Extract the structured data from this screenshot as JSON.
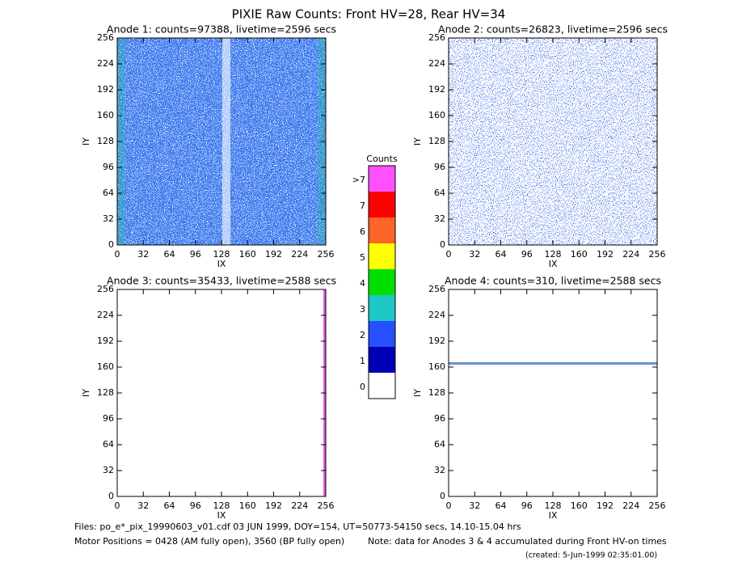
{
  "chart_data": {
    "type": "heatmap",
    "title": "PIXIE Raw Counts:  Front HV=28, Rear HV=34",
    "panels": [
      {
        "title": "Anode 1: counts=97388, livetime=2596 secs",
        "xlabel": "IX",
        "ylabel": "IY",
        "xlim": [
          0,
          256
        ],
        "ylim": [
          0,
          256
        ],
        "xticks": [
          0,
          32,
          64,
          96,
          128,
          160,
          192,
          224,
          256
        ],
        "yticks": [
          0,
          32,
          64,
          96,
          128,
          160,
          192,
          224,
          256
        ]
      },
      {
        "title": "Anode 2: counts=26823, livetime=2596 secs",
        "xlabel": "IX",
        "ylabel": "IY",
        "xlim": [
          0,
          256
        ],
        "ylim": [
          0,
          256
        ],
        "xticks": [
          0,
          32,
          64,
          96,
          128,
          160,
          192,
          224,
          256
        ],
        "yticks": [
          0,
          32,
          64,
          96,
          128,
          160,
          192,
          224,
          256
        ]
      },
      {
        "title": "Anode 3: counts=35433, livetime=2588 secs",
        "xlabel": "IX",
        "ylabel": "IY",
        "xlim": [
          0,
          256
        ],
        "ylim": [
          0,
          256
        ],
        "xticks": [
          0,
          32,
          64,
          96,
          128,
          160,
          192,
          224,
          256
        ],
        "yticks": [
          0,
          32,
          64,
          96,
          128,
          160,
          192,
          224,
          256
        ]
      },
      {
        "title": "Anode 4: counts=310, livetime=2588 secs",
        "xlabel": "IX",
        "ylabel": "IY",
        "xlim": [
          0,
          256
        ],
        "ylim": [
          0,
          256
        ],
        "xticks": [
          0,
          32,
          64,
          96,
          128,
          160,
          192,
          224,
          256
        ],
        "yticks": [
          0,
          32,
          64,
          96,
          128,
          160,
          192,
          224,
          256
        ]
      }
    ],
    "colorbar": {
      "title": "Counts",
      "labels": [
        "0",
        "1",
        "2",
        "3",
        "4",
        "5",
        "6",
        "7",
        ">7"
      ],
      "colors": [
        "#ffffff",
        "#0000b4",
        "#2850ff",
        "#1ec8c8",
        "#00e000",
        "#ffff00",
        "#ff6428",
        "#ff0000",
        "#ff50ff"
      ]
    },
    "footer": {
      "files": "Files: po_e*_pix_19990603_v01.cdf    03 JUN 1999, DOY=154, UT=50773-54150 secs, 14.10-15.04 hrs",
      "motor": "Motor Positions = 0428 (AM fully open), 3560 (BP fully open)",
      "note": "Note: data for Anodes 3 & 4 accumulated during Front HV-on times",
      "created": "(created:  5-Jun-1999 02:35:01.00)"
    }
  }
}
